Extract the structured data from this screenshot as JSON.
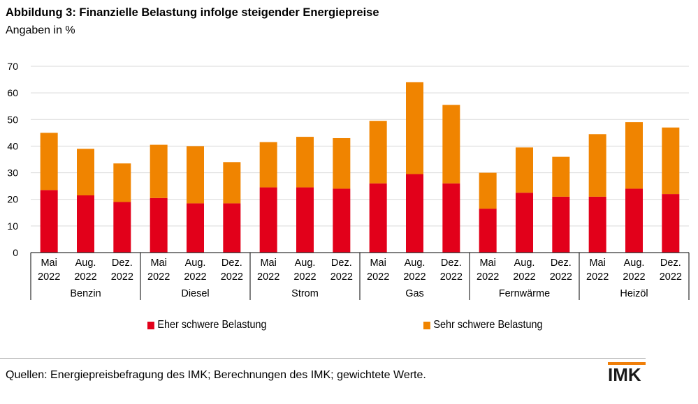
{
  "chart_data": {
    "type": "bar",
    "stacked": true,
    "title": "Abbildung 3: Finanzielle Belastung infolge steigender Energiepreise",
    "subtitle": "Angaben in %",
    "ylim": [
      0,
      70
    ],
    "yticks": [
      0,
      10,
      20,
      30,
      40,
      50,
      60,
      70
    ],
    "grid": true,
    "legend_position": "bottom",
    "groups": [
      "Benzin",
      "Diesel",
      "Strom",
      "Gas",
      "Fernwärme",
      "Heizöl"
    ],
    "period_labels": [
      [
        "Mai",
        "2022"
      ],
      [
        "Aug.",
        "2022"
      ],
      [
        "Dez.",
        "2022"
      ]
    ],
    "series": [
      {
        "name": "Eher schwere Belastung",
        "color": "#e2001a",
        "values": [
          23.5,
          21.5,
          19,
          20.5,
          18.5,
          18.5,
          24.5,
          24.5,
          24,
          26,
          29.5,
          26,
          16.5,
          22.5,
          21,
          21,
          24,
          22
        ]
      },
      {
        "name": "Sehr schwere Belastung",
        "color": "#f08400",
        "values": [
          21.5,
          17.5,
          14.5,
          20,
          21.5,
          15.5,
          17,
          19,
          19,
          23.5,
          34.5,
          29.5,
          13.5,
          17,
          15,
          23.5,
          25,
          25
        ]
      }
    ]
  },
  "footer": {
    "source": "Quellen: Energiepreisbefragung des IMK; Berechnungen des IMK; gewichtete Werte.",
    "logo_text": "IMK",
    "logo_color": "#f07f09"
  }
}
